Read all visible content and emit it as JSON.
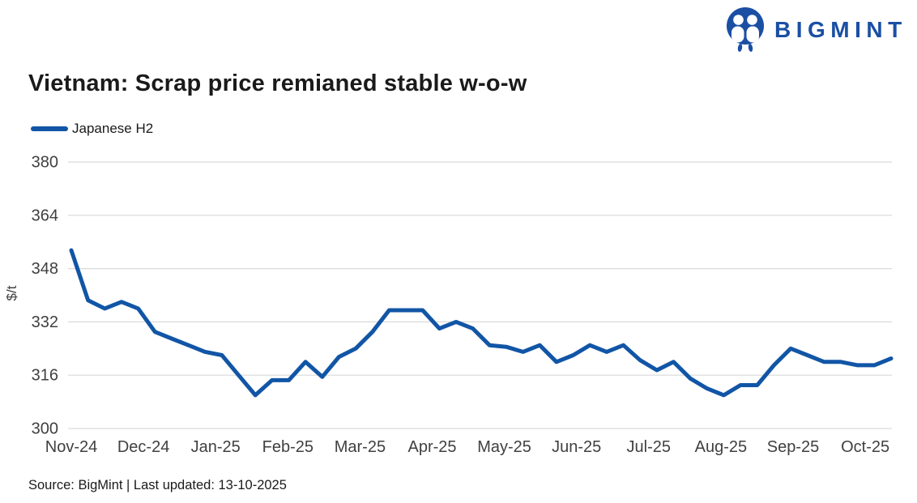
{
  "logo": {
    "wordmark": "BIGMINT",
    "icon": "bigmint-people-icon",
    "color": "#1a4fa4"
  },
  "title": "Vietnam: Scrap price remianed stable w-o-w",
  "legend": {
    "label": "Japanese H2",
    "swatch_color": "#1155a6"
  },
  "footer": {
    "text": "Source: BigMint | Last updated: 13-10-2025"
  },
  "colors": {
    "line": "#1155a6",
    "logo_blue": "#1a4fa4",
    "grid": "#d9d9d9",
    "axis_text": "#404040",
    "title_text": "#1a1a1a",
    "background": "#ffffff"
  },
  "chart_data": {
    "type": "line",
    "title": "Vietnam: Scrap price remianed stable w-o-w",
    "xlabel": "",
    "ylabel": "$/t",
    "ylim": [
      300,
      380
    ],
    "yticks": [
      380,
      364,
      348,
      332,
      316,
      300
    ],
    "x_tick_labels": [
      "Nov-24",
      "Dec-24",
      "Jan-25",
      "Feb-25",
      "Mar-25",
      "Apr-25",
      "May-25",
      "Jun-25",
      "Jul-25",
      "Aug-25",
      "Sep-25",
      "Oct-25"
    ],
    "grid": "horizontal",
    "legend_position": "top-left",
    "cadence": "weekly",
    "series": [
      {
        "name": "Japanese H2",
        "color": "#1155a6",
        "values": [
          353.5,
          338.5,
          336,
          338,
          336,
          329,
          327,
          325,
          323,
          322,
          316,
          310,
          314.5,
          314.5,
          320,
          315.5,
          321.5,
          324,
          329,
          335.5,
          335.5,
          335.5,
          330,
          332,
          330,
          325,
          324.5,
          323,
          325,
          320,
          322,
          325,
          323,
          325,
          320.5,
          317.5,
          320,
          315,
          312,
          310,
          313,
          313,
          319,
          324,
          322,
          320,
          320,
          319,
          319,
          321
        ]
      }
    ]
  }
}
